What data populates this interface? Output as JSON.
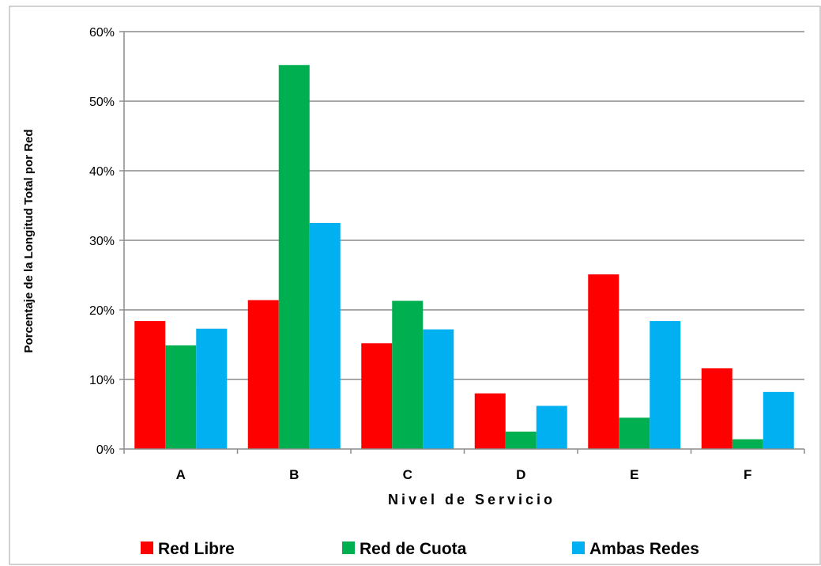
{
  "chart_data": {
    "type": "bar",
    "xlabel": "Nivel de Servicio",
    "ylabel": "Porcentaje de la Longitud Total por Red",
    "categories": [
      "A",
      "B",
      "C",
      "D",
      "E",
      "F"
    ],
    "ylim": [
      0,
      60
    ],
    "yticks": [
      "0%",
      "10%",
      "20%",
      "30%",
      "40%",
      "50%",
      "60%"
    ],
    "grid": true,
    "legend_position": "bottom",
    "series": [
      {
        "name": "Red Libre",
        "color": "#ff0000",
        "values": [
          18.4,
          21.4,
          15.2,
          8.0,
          25.1,
          11.6
        ]
      },
      {
        "name": "Red de Cuota",
        "color": "#00b050",
        "values": [
          14.9,
          55.2,
          21.3,
          2.5,
          4.5,
          1.4
        ]
      },
      {
        "name": "Ambas Redes",
        "color": "#00b0f0",
        "values": [
          17.3,
          32.5,
          17.2,
          6.2,
          18.4,
          8.2
        ]
      }
    ]
  }
}
